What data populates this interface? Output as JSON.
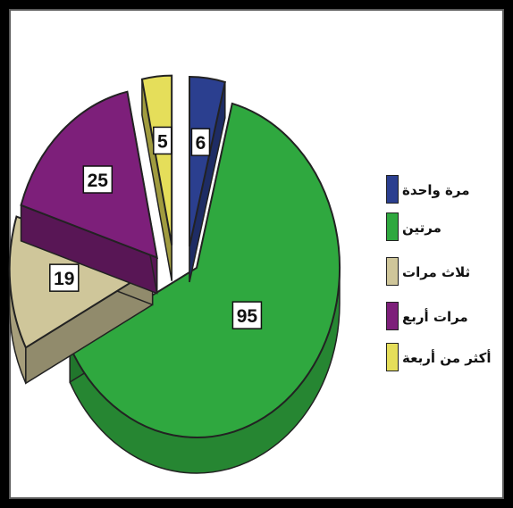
{
  "chart_data": {
    "type": "pie",
    "title": "",
    "categories": [
      "مرة واحدة",
      "مرتين",
      "ثلاث مرات",
      "مرات أربع",
      "أكثر من أربعة"
    ],
    "values": [
      6,
      95,
      19,
      25,
      5
    ],
    "value_labels": [
      "6",
      "95",
      "19",
      "25",
      "5"
    ],
    "colors": [
      "#2b3f8f",
      "#2fa83f",
      "#cfc69a",
      "#7d1f7a",
      "#e5de5a"
    ],
    "legend_placement": "right",
    "exploded": true,
    "three_d": true
  }
}
